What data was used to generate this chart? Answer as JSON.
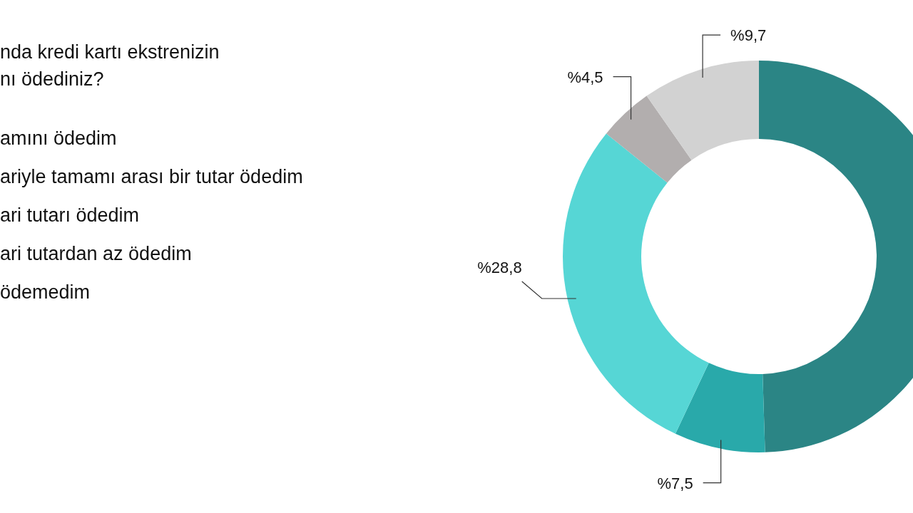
{
  "chart_data": {
    "type": "donut",
    "title": "nda kredi kartı ekstrenizin\nnı ödediniz?",
    "categories": [
      null,
      null,
      null,
      null,
      null
    ],
    "values": [
      49.5,
      7.5,
      28.8,
      4.5,
      9.7
    ],
    "colors": [
      "#2b8585",
      "#29a9aa",
      "#56d6d5",
      "#b2aeae",
      "#d2d2d2"
    ],
    "value_labels": [
      null,
      "%7,5",
      "%28,8",
      "%4,5",
      "%9,7"
    ],
    "annotations": [
      "amını ödedim",
      "ariyle tamamı arası bir tutar ödedim",
      "ari tutarı ödedim",
      "ari tutardan az ödedim",
      "ödemedim"
    ]
  }
}
